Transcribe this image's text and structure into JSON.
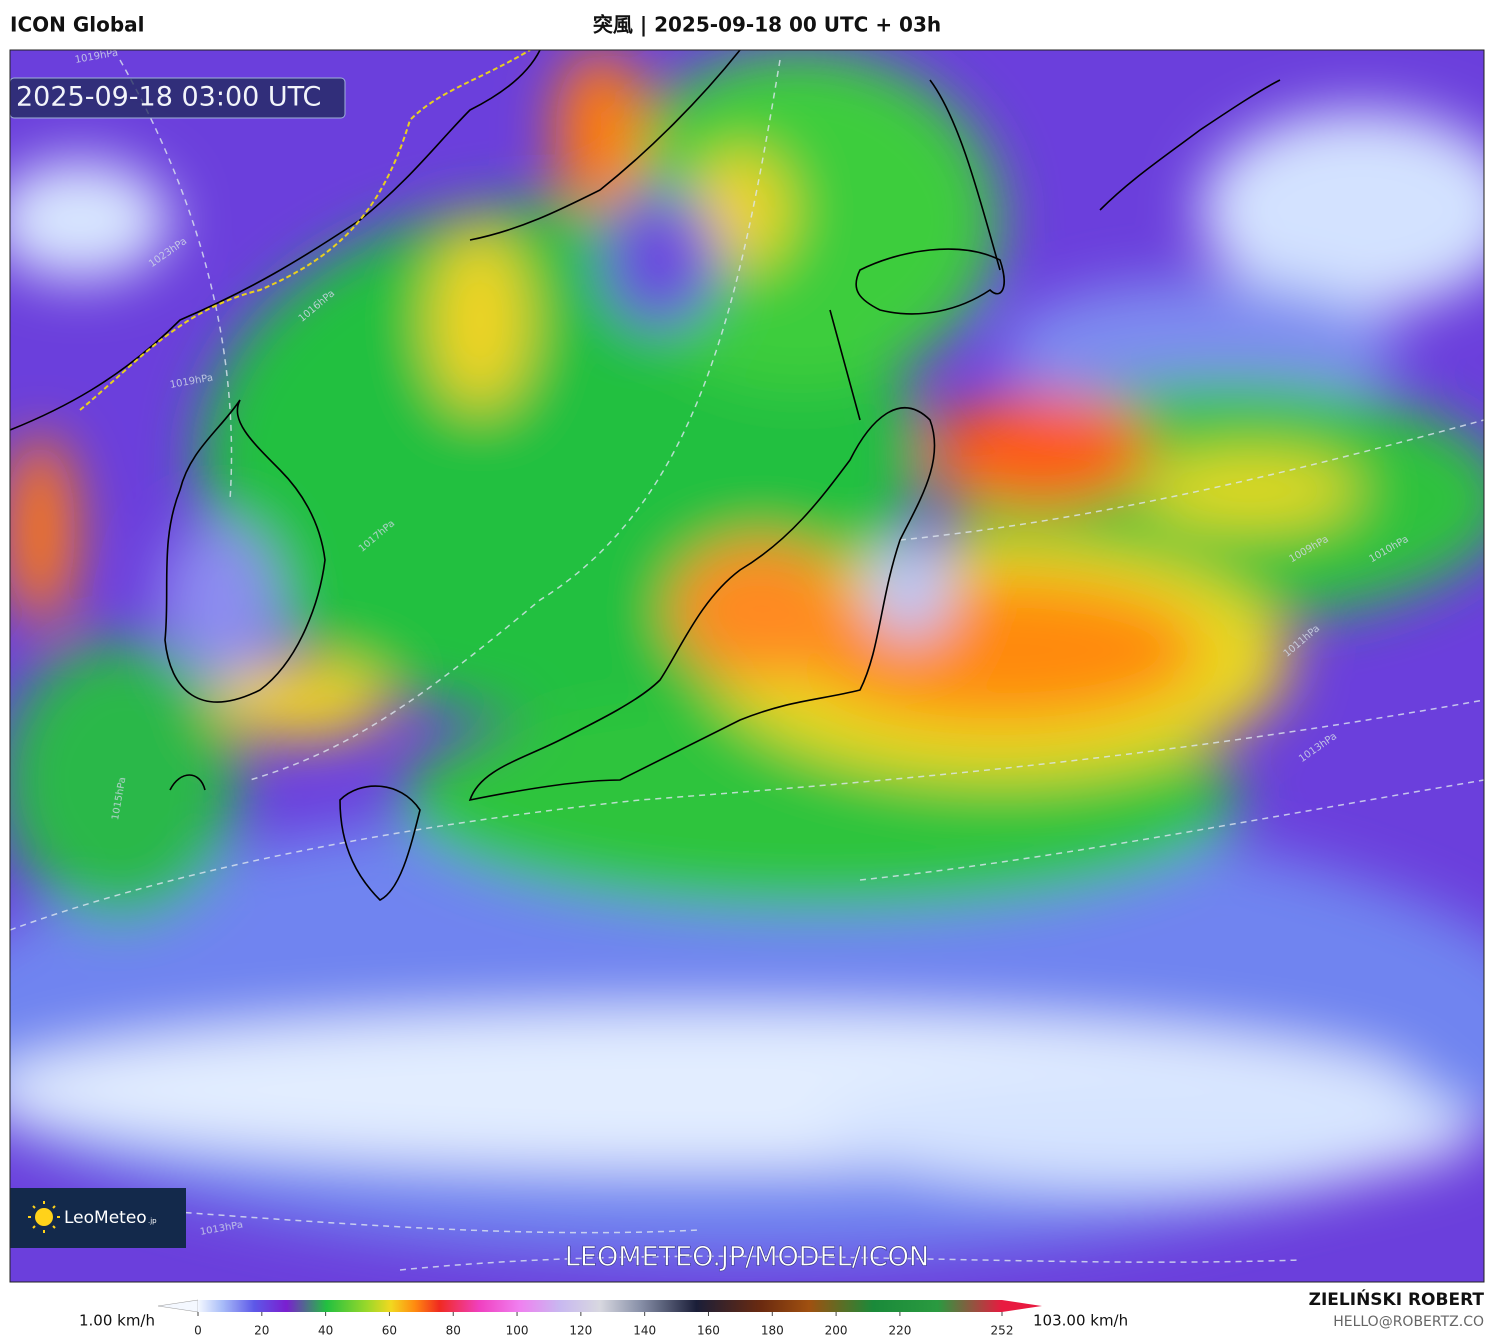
{
  "header": {
    "model": "ICON Global",
    "title": "突風 | 2025-09-18 00 UTC + 03h"
  },
  "map": {
    "valid_time": "2025-09-18 03:00 UTC",
    "watermark": "LEOMETEO.JP/MODEL/ICON",
    "logo": {
      "name": "LeoMeteo",
      "suffix": ".jp"
    },
    "isobar_labels": [
      "1019hPa",
      "1023hPa",
      "1016hPa",
      "1019hPa",
      "1017hPa",
      "1015hPa",
      "1010hPa",
      "1009hPa",
      "1011hPa",
      "1013hPa",
      "1013hPa"
    ]
  },
  "colorbar": {
    "min_label": "1.00 km/h",
    "max_label": "103.00 km/h",
    "ticks": [
      0,
      20,
      40,
      60,
      80,
      100,
      120,
      140,
      160,
      180,
      200,
      220,
      252
    ]
  },
  "footer": {
    "author": "ZIELIŃSKI ROBERT",
    "email": "HELLO@ROBERTZ.CO"
  }
}
